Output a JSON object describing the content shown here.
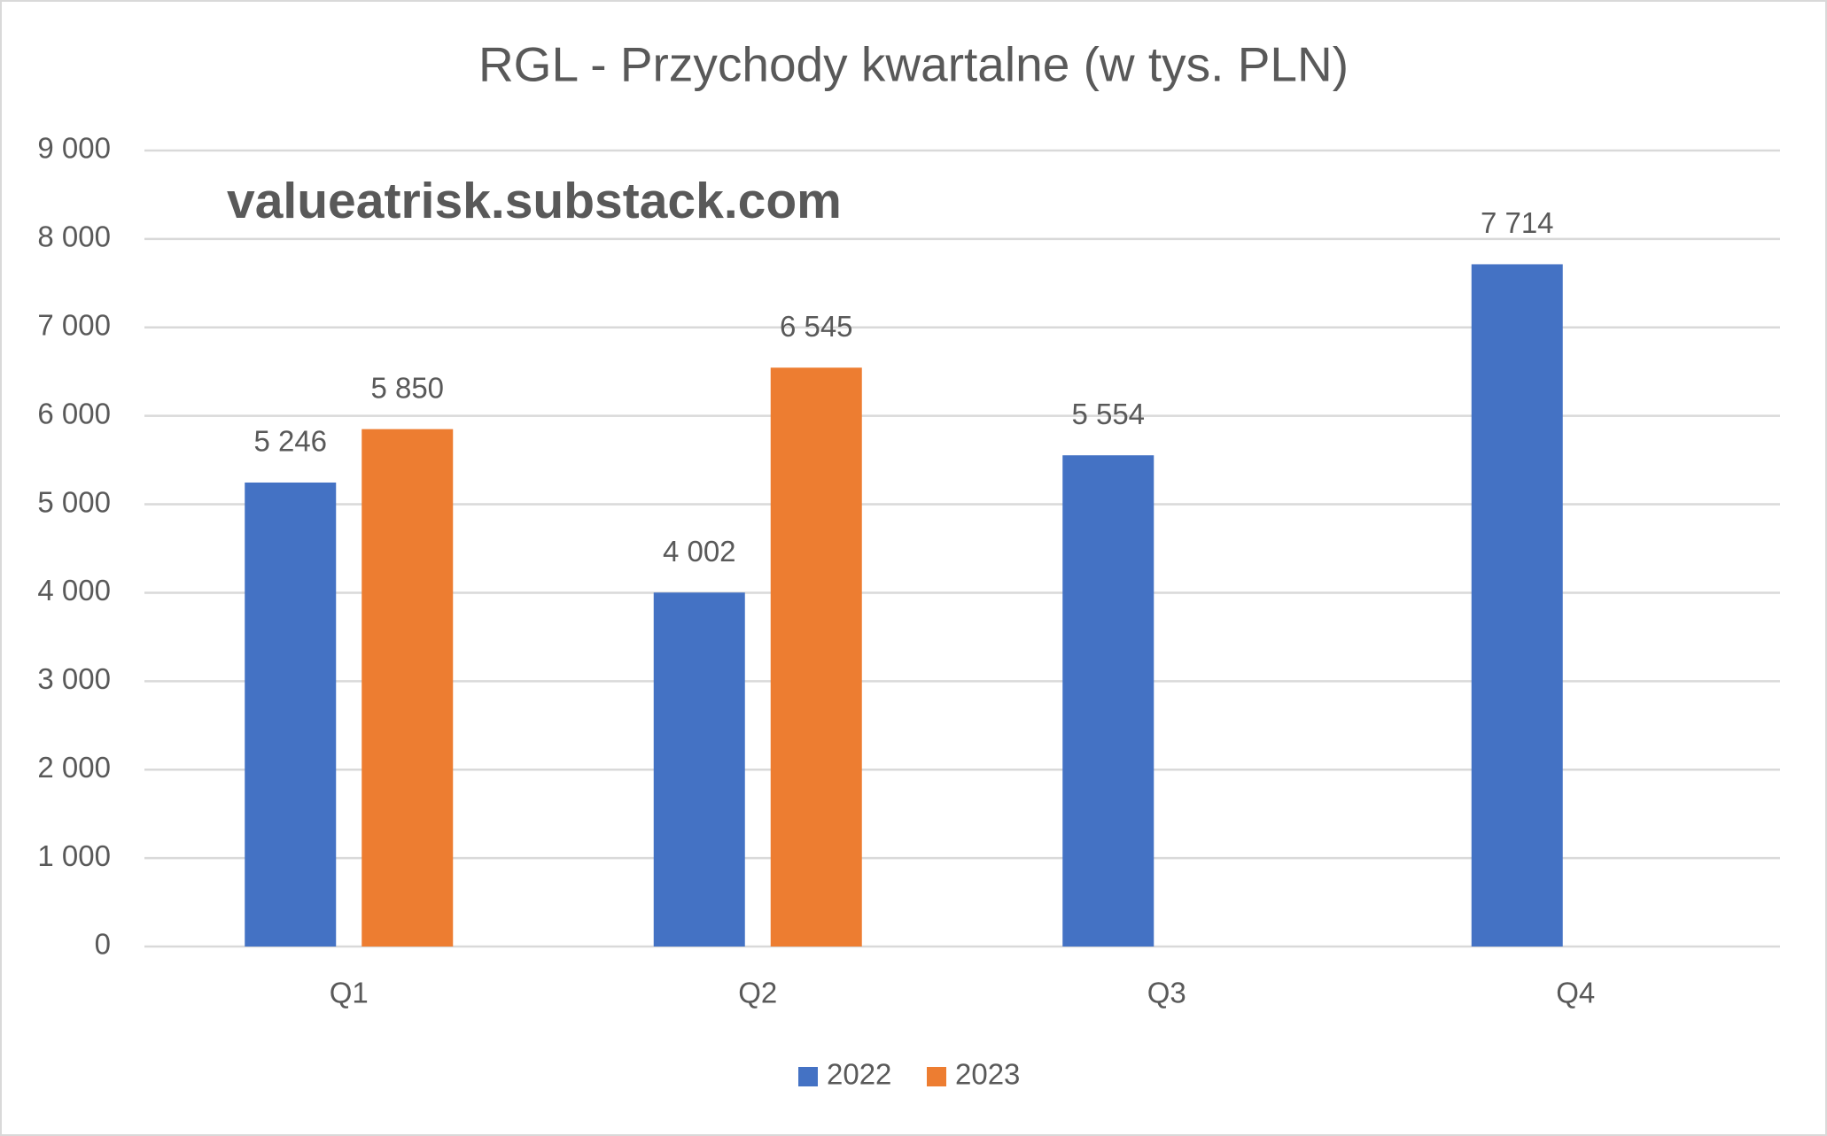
{
  "chart_data": {
    "type": "bar",
    "title": "RGL - Przychody kwartalne (w tys. PLN)",
    "annotation": "valueatrisk.substack.com",
    "categories": [
      "Q1",
      "Q2",
      "Q3",
      "Q4"
    ],
    "series": [
      {
        "name": "2022",
        "color": "#4472c4",
        "values": [
          5246,
          4002,
          5554,
          7714
        ],
        "value_labels": [
          "5 246",
          "4 002",
          "5 554",
          "7 714"
        ]
      },
      {
        "name": "2023",
        "color": "#ed7d31",
        "values": [
          5850,
          6545,
          null,
          null
        ],
        "value_labels": [
          "5 850",
          "6 545",
          null,
          null
        ]
      }
    ],
    "ylim": [
      0,
      9000
    ],
    "yticks": [
      0,
      {
        "value": 1000,
        "label": "1 000"
      },
      {
        "value": 2000,
        "label": "2 000"
      },
      {
        "value": 3000,
        "label": "3 000"
      },
      {
        "value": 4000,
        "label": "4 000"
      },
      {
        "value": 5000,
        "label": "5 000"
      },
      {
        "value": 6000,
        "label": "6 000"
      },
      {
        "value": 7000,
        "label": "7 000"
      },
      {
        "value": 8000,
        "label": "8 000"
      },
      {
        "value": 9000,
        "label": "9 000"
      }
    ],
    "grid": true,
    "legend": "bottom"
  }
}
